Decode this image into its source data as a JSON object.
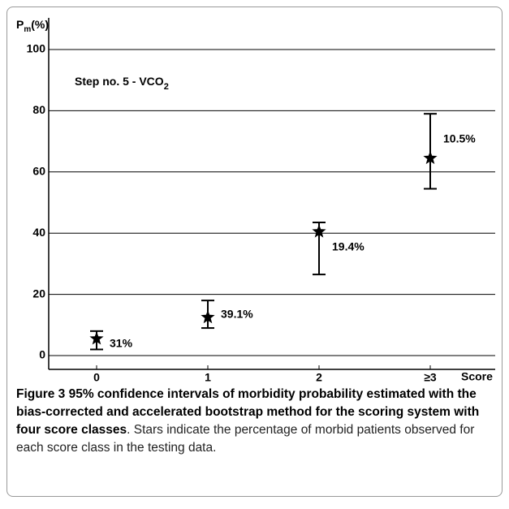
{
  "chart_data": {
    "type": "errorbar",
    "ylabel": "P",
    "ylabel_sub": "m",
    "ylabel_suffix": "(%)",
    "title": "Step no. 5  -  VCO",
    "title_sub": "2",
    "xlabel": "Score",
    "categories": [
      "0",
      "1",
      "2",
      "≥3"
    ],
    "values": [
      5.5,
      12.5,
      40.5,
      64.5
    ],
    "lower": [
      2,
      9,
      26.5,
      54.5
    ],
    "upper": [
      8,
      18,
      43.5,
      79
    ],
    "annotations": [
      "31%",
      "39.1%",
      "19.4%",
      "10.5%"
    ],
    "color": "#000000",
    "ylim": [
      0,
      100
    ],
    "yticks": [
      0,
      20,
      40,
      60,
      80,
      100
    ],
    "grid": true
  },
  "caption": {
    "title": "Figure 3 95% confidence intervals of morbidity probability estimated with the bias-corrected and accelerated bootstrap method for the scoring system with four score classes",
    "text": ". Stars indicate the percentage of morbid patients observed for each score class in the testing data."
  }
}
